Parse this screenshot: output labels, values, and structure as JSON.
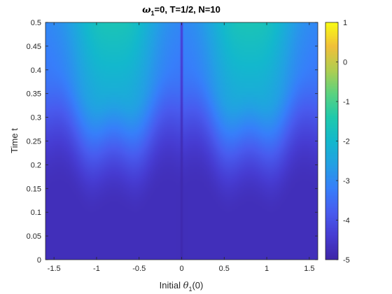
{
  "chart_data": {
    "type": "heatmap",
    "title": {
      "omega_symbol": "ω",
      "omega_subscript": "1",
      "rest": "=0, T=1/2, N=10"
    },
    "xlabel": {
      "prefix": "Initial ",
      "theta_symbol": "θ",
      "theta_subscript": "1",
      "suffix": "(0)"
    },
    "ylabel": "Time t",
    "xlim": [
      -1.6,
      1.6
    ],
    "ylim": [
      0,
      0.5
    ],
    "clim": [
      -5,
      1
    ],
    "colormap": "parula",
    "x_ticks": [
      {
        "value": -1.5,
        "label": "-1.5"
      },
      {
        "value": -1,
        "label": "-1"
      },
      {
        "value": -0.5,
        "label": "-0.5"
      },
      {
        "value": 0,
        "label": "0"
      },
      {
        "value": 0.5,
        "label": "0.5"
      },
      {
        "value": 1,
        "label": "1"
      },
      {
        "value": 1.5,
        "label": "1.5"
      }
    ],
    "y_ticks": [
      {
        "value": 0,
        "label": "0"
      },
      {
        "value": 0.05,
        "label": "0.05"
      },
      {
        "value": 0.1,
        "label": "0.1"
      },
      {
        "value": 0.15,
        "label": "0.15"
      },
      {
        "value": 0.2,
        "label": "0.2"
      },
      {
        "value": 0.25,
        "label": "0.25"
      },
      {
        "value": 0.3,
        "label": "0.3"
      },
      {
        "value": 0.35,
        "label": "0.35"
      },
      {
        "value": 0.4,
        "label": "0.4"
      },
      {
        "value": 0.45,
        "label": "0.45"
      },
      {
        "value": 0.5,
        "label": "0.5"
      }
    ],
    "colorbar_ticks": [
      {
        "value": 1,
        "label": "1"
      },
      {
        "value": 0,
        "label": "0"
      },
      {
        "value": -1,
        "label": "-1"
      },
      {
        "value": -2,
        "label": "-2"
      },
      {
        "value": -3,
        "label": "-3"
      },
      {
        "value": -4,
        "label": "-4"
      },
      {
        "value": -5,
        "label": "-5"
      }
    ],
    "grid": false,
    "field_description_points": [
      {
        "x": 0,
        "y": 0.5,
        "value": -5
      },
      {
        "x": -0.8,
        "y": 0.05,
        "value": -4.6
      },
      {
        "x": -0.8,
        "y": 0.2,
        "value": -3.6
      },
      {
        "x": -0.8,
        "y": 0.3,
        "value": -2.6
      },
      {
        "x": -0.8,
        "y": 0.4,
        "value": -1.9
      },
      {
        "x": -0.8,
        "y": 0.5,
        "value": -1.6
      },
      {
        "x": 0.8,
        "y": 0.5,
        "value": -1.6
      },
      {
        "x": -1.5,
        "y": 0.5,
        "value": -3.0
      }
    ]
  }
}
